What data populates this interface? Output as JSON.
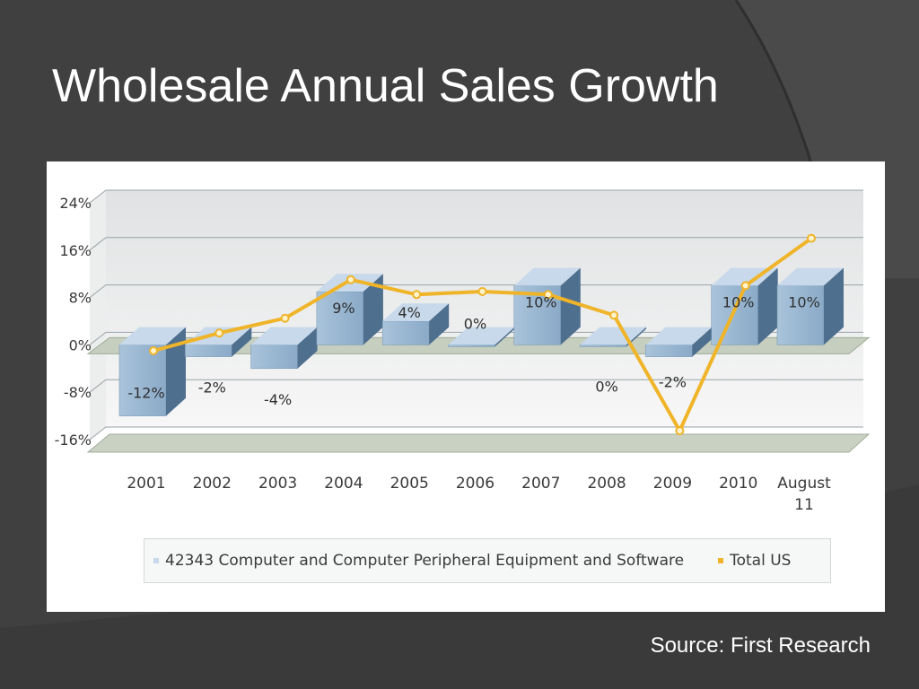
{
  "slide": {
    "title": "Wholesale Annual Sales Growth",
    "source": "Source: First Research"
  },
  "colors": {
    "background": "#404040",
    "bar_front": "#8aaac8",
    "bar_top": "#c7d9ea",
    "bar_side": "#4f6f8f",
    "line": "#f0b429",
    "floor": "#c9d1c3"
  },
  "chart_data": {
    "type": "bar",
    "categories": [
      "2001",
      "2002",
      "2003",
      "2004",
      "2005",
      "2006",
      "2007",
      "2008",
      "2009",
      "2010",
      "August\n11"
    ],
    "yticks": [
      "24%",
      "16%",
      "8%",
      "0%",
      "-8%",
      "-16%"
    ],
    "ylim": [
      -16,
      24
    ],
    "grid": true,
    "legend_position": "bottom",
    "series": [
      {
        "name": "42343 Computer and Computer Peripheral Equipment and Software",
        "type": "bar",
        "values": [
          -12,
          -2,
          -4,
          9,
          4,
          0,
          10,
          0,
          -2,
          10,
          10
        ],
        "labels": [
          "-12%",
          "-2%",
          "-4%",
          "9%",
          "4%",
          "0%",
          "10%",
          "0%",
          "-2%",
          "10%",
          "10%"
        ]
      },
      {
        "name": "Total US",
        "type": "line",
        "values": [
          -1,
          2,
          4.5,
          11,
          8.5,
          9,
          8.5,
          5,
          -14.5,
          10,
          18
        ]
      }
    ]
  }
}
